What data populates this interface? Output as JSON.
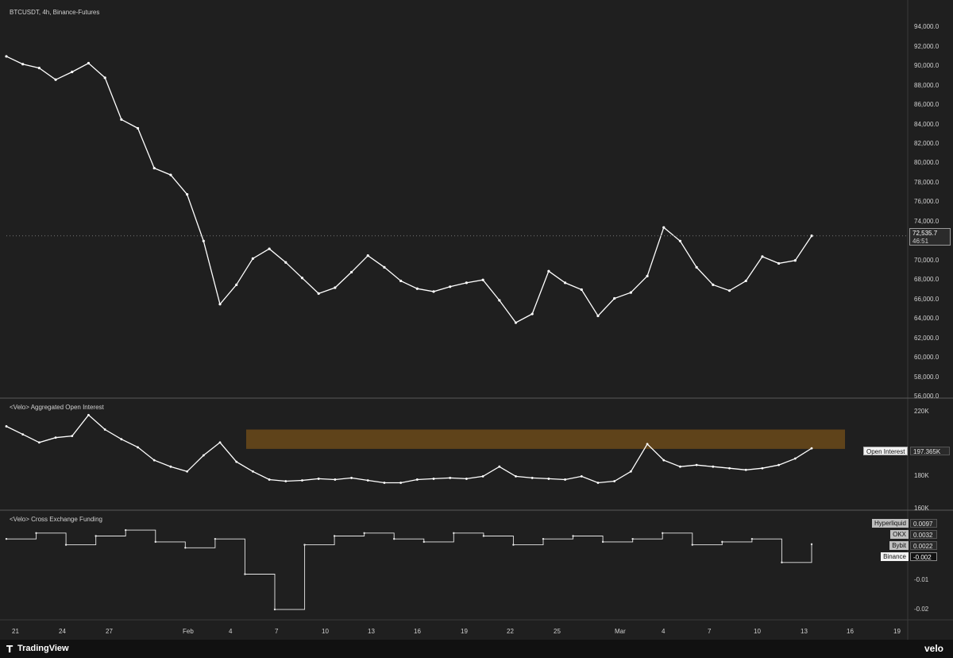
{
  "header": {
    "symbol_title": "BTCUSDT, 4h, Binance-Futures",
    "last_price": "72,535.7",
    "countdown": "46:51"
  },
  "price_axis": {
    "ticks": [
      "94,000.0",
      "92,000.0",
      "90,000.0",
      "88,000.0",
      "86,000.0",
      "84,000.0",
      "82,000.0",
      "80,000.0",
      "78,000.0",
      "76,000.0",
      "74,000.0",
      "72,000.0",
      "70,000.0",
      "68,000.0",
      "66,000.0",
      "64,000.0",
      "62,000.0",
      "60,000.0",
      "58,000.0",
      "56,000.0"
    ]
  },
  "oi_panel": {
    "title": "<Velo> Aggregated Open Interest",
    "ticks": [
      "220K",
      "180K",
      "160K"
    ],
    "tag_name": "Open Interest",
    "tag_value": "197.365K",
    "highlight_color": "#6b4a1a"
  },
  "funding_panel": {
    "title": "<Velo> Cross Exchange Funding",
    "ticks": [
      "-0.01",
      "-0.02"
    ],
    "legend": [
      {
        "name": "Hyperliquid",
        "value": "0.0097"
      },
      {
        "name": "OKX",
        "value": "0.0032"
      },
      {
        "name": "Bybit",
        "value": "0.0022"
      },
      {
        "name": "Binance",
        "value": "-0.002"
      }
    ]
  },
  "time_axis": {
    "ticks": [
      "21",
      "24",
      "27",
      "Feb",
      "4",
      "7",
      "10",
      "13",
      "16",
      "19",
      "22",
      "25",
      "Mar",
      "4",
      "7",
      "10",
      "13",
      "16",
      "19"
    ]
  },
  "footer": {
    "brand": "TradingView",
    "watermark": "velo"
  },
  "chart_data": [
    {
      "type": "line",
      "title": "BTCUSDT, 4h, Binance-Futures",
      "x": [
        "Jan 20",
        "Jan 22",
        "Jan 24",
        "Jan 26",
        "Jan 28",
        "Jan 29",
        "Jan 30",
        "Jan 31",
        "Feb 1",
        "Feb 2",
        "Feb 3",
        "Feb 4",
        "Feb 5",
        "Feb 6",
        "Feb 7",
        "Feb 8",
        "Feb 9",
        "Feb 10",
        "Feb 11",
        "Feb 12",
        "Feb 13",
        "Feb 14",
        "Feb 15",
        "Feb 16",
        "Feb 17",
        "Feb 18",
        "Feb 19",
        "Feb 20",
        "Feb 21",
        "Feb 22",
        "Feb 23",
        "Feb 24",
        "Feb 25",
        "Feb 26",
        "Feb 27",
        "Feb 28",
        "Mar 1",
        "Mar 2",
        "Mar 3",
        "Mar 4",
        "Mar 5",
        "Mar 6",
        "Mar 7",
        "Mar 8",
        "Mar 9",
        "Mar 10",
        "Mar 11",
        "Mar 12",
        "Mar 13",
        "Mar 14"
      ],
      "values": [
        91000,
        90200,
        89800,
        88600,
        89400,
        90300,
        88800,
        84500,
        83600,
        79500,
        78800,
        76800,
        72000,
        65500,
        67500,
        70200,
        71200,
        69800,
        68200,
        66600,
        67200,
        68800,
        70500,
        69300,
        67900,
        67100,
        66800,
        67300,
        67700,
        68000,
        65900,
        63600,
        64500,
        68900,
        67700,
        67000,
        64300,
        66100,
        66700,
        68400,
        73400,
        72000,
        69300,
        67500,
        66900,
        67900,
        70400,
        69700,
        70000,
        72535.7
      ],
      "ylim": [
        56000,
        95000
      ],
      "last_value_label": "72,535.7"
    },
    {
      "type": "line",
      "title": "<Velo> Aggregated Open Interest",
      "x": [
        "Jan 20",
        "Jan 22",
        "Jan 24",
        "Jan 26",
        "Jan 28",
        "Jan 29",
        "Jan 30",
        "Jan 31",
        "Feb 1",
        "Feb 2",
        "Feb 3",
        "Feb 4",
        "Feb 5",
        "Feb 6",
        "Feb 7",
        "Feb 8",
        "Feb 9",
        "Feb 10",
        "Feb 11",
        "Feb 12",
        "Feb 13",
        "Feb 14",
        "Feb 15",
        "Feb 16",
        "Feb 17",
        "Feb 18",
        "Feb 19",
        "Feb 20",
        "Feb 21",
        "Feb 22",
        "Feb 23",
        "Feb 24",
        "Feb 25",
        "Feb 26",
        "Feb 27",
        "Feb 28",
        "Mar 1",
        "Mar 2",
        "Mar 3",
        "Mar 4",
        "Mar 5",
        "Mar 6",
        "Mar 7",
        "Mar 8",
        "Mar 9",
        "Mar 10",
        "Mar 11",
        "Mar 12",
        "Mar 13",
        "Mar 14"
      ],
      "values": [
        211000,
        206000,
        201000,
        204000,
        205000,
        218000,
        209000,
        203000,
        198000,
        190000,
        186000,
        183000,
        193000,
        201000,
        189000,
        183000,
        178000,
        177000,
        177500,
        178500,
        178000,
        179000,
        177500,
        176000,
        176000,
        178000,
        178500,
        179000,
        178500,
        180000,
        186000,
        180000,
        179000,
        178500,
        178000,
        180000,
        176000,
        177000,
        183000,
        200000,
        190000,
        186000,
        187000,
        186000,
        185000,
        184000,
        185000,
        187000,
        191000,
        197365
      ],
      "ylim": [
        160000,
        226000
      ],
      "highlight_band": [
        197000,
        209000
      ],
      "last_value_label": "197.365K"
    },
    {
      "type": "line",
      "title": "<Velo> Cross Exchange Funding",
      "series": [
        {
          "name": "Hyperliquid",
          "last": 0.0097
        },
        {
          "name": "OKX",
          "last": 0.0032
        },
        {
          "name": "Bybit",
          "last": 0.0022
        },
        {
          "name": "Binance",
          "last": -0.002
        }
      ],
      "x": [
        "Jan 20",
        "Jan 22",
        "Jan 24",
        "Jan 26",
        "Jan 28",
        "Jan 30",
        "Feb 1",
        "Feb 3",
        "Feb 5",
        "Feb 7",
        "Feb 9",
        "Feb 11",
        "Feb 13",
        "Feb 15",
        "Feb 17",
        "Feb 19",
        "Feb 21",
        "Feb 23",
        "Feb 25",
        "Feb 27",
        "Mar 1",
        "Mar 3",
        "Mar 5",
        "Mar 7",
        "Mar 9",
        "Mar 11",
        "Mar 13",
        "Mar 14"
      ],
      "values": [
        0.004,
        0.006,
        0.002,
        0.005,
        0.007,
        0.003,
        0.001,
        0.004,
        -0.008,
        -0.02,
        0.002,
        0.005,
        0.006,
        0.004,
        0.003,
        0.006,
        0.005,
        0.002,
        0.004,
        0.005,
        0.003,
        0.004,
        0.006,
        0.002,
        0.003,
        0.004,
        -0.004,
        0.0022
      ],
      "ylim": [
        -0.023,
        0.01
      ]
    }
  ]
}
